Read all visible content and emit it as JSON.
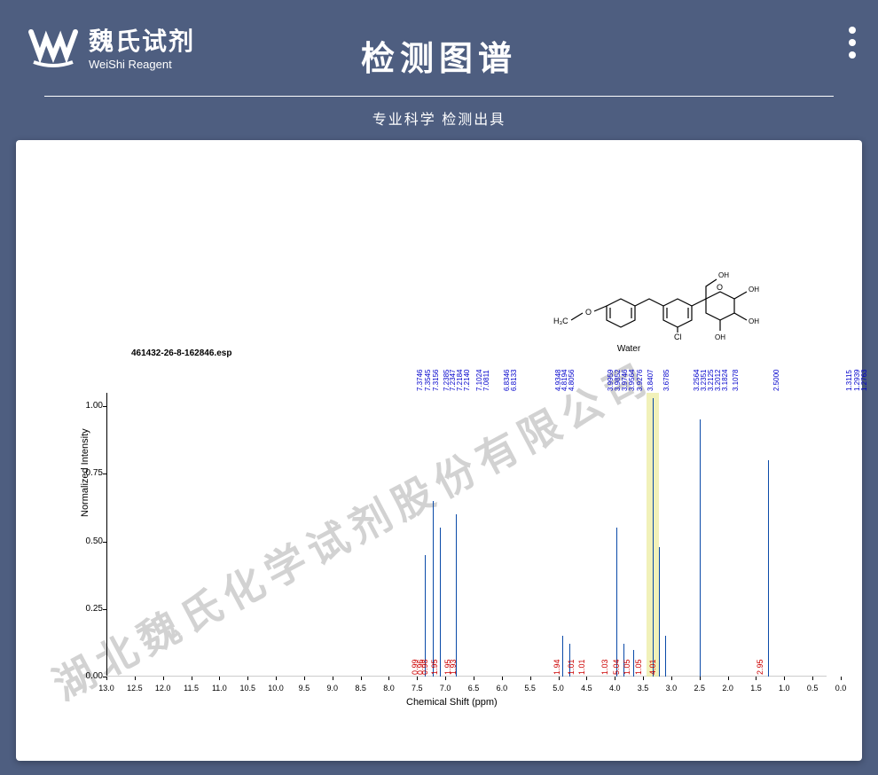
{
  "header": {
    "logo_cn": "魏氏试剂",
    "logo_en": "WeiShi Reagent",
    "title": "检测图谱",
    "subtitle": "专业科学 检测出具"
  },
  "spectrum": {
    "filename": "461432-26-8-162846.esp",
    "ylabel": "Normalized Intensity",
    "xlabel": "Chemical Shift (ppm)",
    "water_label": "Water",
    "xlim": [
      13.0,
      0
    ],
    "ylim": [
      0,
      1.05
    ],
    "xticks": [
      13.0,
      12.5,
      12.0,
      11.5,
      11.0,
      10.5,
      10.0,
      9.5,
      9.0,
      8.5,
      8.0,
      7.5,
      7.0,
      6.5,
      6.0,
      5.5,
      5.0,
      4.5,
      4.0,
      3.5,
      3.0,
      2.5,
      2.0,
      1.5,
      1.0,
      0.5,
      0
    ],
    "yticks": [
      0,
      0.25,
      0.5,
      0.75,
      1.0
    ],
    "peak_labels": [
      {
        "ppm": 7.3746,
        "text": "7.3746"
      },
      {
        "ppm": 7.3545,
        "text": "7.3545"
      },
      {
        "ppm": 7.3156,
        "text": "7.3156"
      },
      {
        "ppm": 7.2385,
        "text": "7.2385"
      },
      {
        "ppm": 7.2347,
        "text": "7.2347"
      },
      {
        "ppm": 7.2184,
        "text": "7.2184"
      },
      {
        "ppm": 7.214,
        "text": "7.2140"
      },
      {
        "ppm": 7.1024,
        "text": "7.1024"
      },
      {
        "ppm": 7.0811,
        "text": "7.0811"
      },
      {
        "ppm": 6.8346,
        "text": "6.8346"
      },
      {
        "ppm": 6.8133,
        "text": "6.8133"
      },
      {
        "ppm": 4.9348,
        "text": "4.9348"
      },
      {
        "ppm": 4.8194,
        "text": "4.8194"
      },
      {
        "ppm": 4.8056,
        "text": "4.8056"
      },
      {
        "ppm": 3.9959,
        "text": "3.9959"
      },
      {
        "ppm": 3.9852,
        "text": "3.9852"
      },
      {
        "ppm": 3.9746,
        "text": "3.9746"
      },
      {
        "ppm": 3.9564,
        "text": "3.9564"
      },
      {
        "ppm": 3.9276,
        "text": "3.9276"
      },
      {
        "ppm": 3.8407,
        "text": "3.8407"
      },
      {
        "ppm": 3.6785,
        "text": "3.6785"
      },
      {
        "ppm": 3.2564,
        "text": "3.2564"
      },
      {
        "ppm": 3.2351,
        "text": "3.2351"
      },
      {
        "ppm": 3.2125,
        "text": "3.2125"
      },
      {
        "ppm": 3.2012,
        "text": "3.2012"
      },
      {
        "ppm": 3.1824,
        "text": "3.1824"
      },
      {
        "ppm": 3.1078,
        "text": "3.1078"
      },
      {
        "ppm": 2.5,
        "text": "2.5000"
      },
      {
        "ppm": 1.3115,
        "text": "1.3115"
      },
      {
        "ppm": 1.2939,
        "text": "1.2939"
      },
      {
        "ppm": 1.2763,
        "text": "1.2763"
      }
    ],
    "peaks": [
      {
        "ppm": 7.36,
        "h": 0.45
      },
      {
        "ppm": 7.23,
        "h": 0.65
      },
      {
        "ppm": 7.09,
        "h": 0.55
      },
      {
        "ppm": 6.82,
        "h": 0.6
      },
      {
        "ppm": 4.93,
        "h": 0.15
      },
      {
        "ppm": 4.81,
        "h": 0.12
      },
      {
        "ppm": 3.98,
        "h": 0.55
      },
      {
        "ppm": 3.84,
        "h": 0.12
      },
      {
        "ppm": 3.68,
        "h": 0.1
      },
      {
        "ppm": 3.33,
        "h": 1.03
      },
      {
        "ppm": 3.22,
        "h": 0.48
      },
      {
        "ppm": 3.11,
        "h": 0.15
      },
      {
        "ppm": 2.5,
        "h": 0.95
      },
      {
        "ppm": 1.29,
        "h": 0.8
      }
    ],
    "integrals": [
      {
        "ppm": 7.45,
        "text": "0.99"
      },
      {
        "ppm": 7.37,
        "text": "0.96"
      },
      {
        "ppm": 7.28,
        "text": "0.98"
      },
      {
        "ppm": 7.12,
        "text": "1.95"
      },
      {
        "ppm": 6.88,
        "text": "1.95"
      },
      {
        "ppm": 6.78,
        "text": "1.93"
      },
      {
        "ppm": 4.95,
        "text": "1.94"
      },
      {
        "ppm": 4.7,
        "text": "1.01"
      },
      {
        "ppm": 4.5,
        "text": "1.01"
      },
      {
        "ppm": 4.1,
        "text": "1.03"
      },
      {
        "ppm": 3.9,
        "text": "5.04"
      },
      {
        "ppm": 3.7,
        "text": "1.05"
      },
      {
        "ppm": 3.5,
        "text": "1.05"
      },
      {
        "ppm": 3.25,
        "text": "4.01"
      },
      {
        "ppm": 1.35,
        "text": "2.95"
      }
    ],
    "water_band": {
      "ppm": 3.33,
      "width": 14
    },
    "colors": {
      "peak": "#0a4aa8",
      "peak_label": "#0000cc",
      "integral": "#cc0000",
      "watermark": "#c8c8c8"
    }
  },
  "watermark": "湖北魏氏化学试剂股份有限公司"
}
